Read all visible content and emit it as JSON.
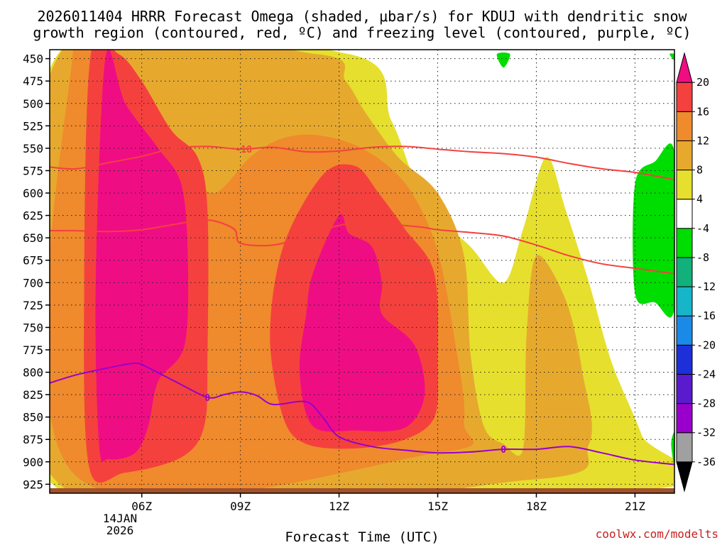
{
  "chart_data": {
    "type": "time-height",
    "title_line1": "2026011404 HRRR Forecast Omega (shaded, μbar/s) for KDUJ with dendritic snow",
    "title_line2": "growth region (contoured, red, ºC) and freezing level (contoured, purple, ºC)",
    "xlabel": "Forecast Time (UTC)",
    "credit": "coolwx.com/modelts",
    "xlim": [
      3.2,
      22.2
    ],
    "ylim": [
      440,
      935
    ],
    "x_ticks": [
      {
        "value": 6,
        "label": "06Z"
      },
      {
        "value": 9,
        "label": "09Z"
      },
      {
        "value": 12,
        "label": "12Z"
      },
      {
        "value": 15,
        "label": "15Z"
      },
      {
        "value": 18,
        "label": "18Z"
      },
      {
        "value": 21,
        "label": "21Z"
      }
    ],
    "date_label": {
      "value": 6,
      "line1": "14JAN",
      "line2": "2026"
    },
    "y_ticks": [
      450,
      475,
      500,
      525,
      550,
      575,
      600,
      625,
      650,
      675,
      700,
      725,
      750,
      775,
      800,
      825,
      850,
      875,
      900,
      925
    ],
    "colorbar": {
      "levels": [
        -36,
        -32,
        -28,
        -24,
        -20,
        -16,
        -12,
        -8,
        -4,
        4,
        8,
        12,
        16,
        20
      ],
      "bins": [
        {
          "color": "#000000"
        },
        {
          "color": "#a0a0a0"
        },
        {
          "color": "#9900cc"
        },
        {
          "color": "#5a1acd"
        },
        {
          "color": "#1c2fd9"
        },
        {
          "color": "#1a8ae8"
        },
        {
          "color": "#16b5c8"
        },
        {
          "color": "#12b07a"
        },
        {
          "color": "#00dd00"
        },
        {
          "color": "#ffffff"
        },
        {
          "color": "#e6df2e"
        },
        {
          "color": "#e6a92e"
        },
        {
          "color": "#ef8a2d"
        },
        {
          "color": "#f4413e"
        },
        {
          "color": "#ef0d84"
        }
      ]
    },
    "omega_shading": [
      {
        "level": "4 to 8",
        "color": "#e6df2e",
        "polygon": [
          [
            3.45,
            445
          ],
          [
            12.3,
            445
          ],
          [
            13.6,
            520
          ],
          [
            14.6,
            610
          ],
          [
            16.0,
            660
          ],
          [
            17.0,
            700
          ],
          [
            17.6,
            640
          ],
          [
            18.3,
            560
          ],
          [
            18.9,
            620
          ],
          [
            19.6,
            700
          ],
          [
            20.3,
            790
          ],
          [
            21.2,
            870
          ],
          [
            21.6,
            930
          ],
          [
            3.45,
            930
          ]
        ]
      },
      {
        "level": "8 to 12",
        "color": "#e6a92e",
        "polygon": [
          [
            3.5,
            445
          ],
          [
            11.3,
            445
          ],
          [
            12.2,
            475
          ],
          [
            12.8,
            510
          ],
          [
            13.8,
            560
          ],
          [
            15.0,
            600
          ],
          [
            15.8,
            670
          ],
          [
            16.0,
            780
          ],
          [
            16.4,
            860
          ],
          [
            17.0,
            880
          ],
          [
            17.6,
            885
          ],
          [
            17.7,
            760
          ],
          [
            18.0,
            670
          ],
          [
            18.9,
            720
          ],
          [
            19.4,
            800
          ],
          [
            19.6,
            880
          ],
          [
            17.8,
            920
          ],
          [
            3.5,
            925
          ]
        ]
      },
      {
        "level": "12 to 16",
        "color": "#ef8a2d",
        "polygon": [
          [
            3.9,
            445
          ],
          [
            5.0,
            445
          ],
          [
            6.0,
            490
          ],
          [
            6.8,
            540
          ],
          [
            7.3,
            570
          ],
          [
            8.2,
            600
          ],
          [
            9.3,
            560
          ],
          [
            10.2,
            540
          ],
          [
            11.2,
            535
          ],
          [
            12.4,
            545
          ],
          [
            13.5,
            570
          ],
          [
            14.3,
            605
          ],
          [
            15.0,
            665
          ],
          [
            15.5,
            760
          ],
          [
            15.8,
            855
          ],
          [
            15.0,
            890
          ],
          [
            3.9,
            912
          ]
        ]
      },
      {
        "level": "16 to 20",
        "color": "#f4413e",
        "polygon": [
          [
            4.45,
            445
          ],
          [
            5.3,
            445
          ],
          [
            6.0,
            475
          ],
          [
            6.9,
            530
          ],
          [
            7.7,
            560
          ],
          [
            8.0,
            620
          ],
          [
            8.0,
            780
          ],
          [
            7.9,
            860
          ],
          [
            7.2,
            895
          ],
          [
            5.5,
            912
          ],
          [
            4.4,
            906
          ],
          [
            4.25,
            700
          ]
        ]
      },
      {
        "level": "16 to 20",
        "color": "#f4413e",
        "polygon": [
          [
            11.5,
            580
          ],
          [
            12.5,
            570
          ],
          [
            13.2,
            600
          ],
          [
            14.0,
            640
          ],
          [
            14.9,
            690
          ],
          [
            15.0,
            790
          ],
          [
            14.9,
            850
          ],
          [
            14.0,
            875
          ],
          [
            12.5,
            885
          ],
          [
            11.0,
            880
          ],
          [
            10.3,
            850
          ],
          [
            9.9,
            760
          ],
          [
            10.3,
            660
          ]
        ]
      },
      {
        "level": "> 20",
        "color": "#ef0d84",
        "polygon": [
          [
            4.9,
            448
          ],
          [
            5.5,
            500
          ],
          [
            6.5,
            550
          ],
          [
            7.2,
            590
          ],
          [
            7.4,
            670
          ],
          [
            7.3,
            770
          ],
          [
            6.5,
            810
          ],
          [
            6.2,
            860
          ],
          [
            5.8,
            890
          ],
          [
            5.0,
            897
          ],
          [
            4.7,
            880
          ],
          [
            4.6,
            700
          ]
        ]
      },
      {
        "level": "> 20",
        "color": "#ef0d84",
        "polygon": [
          [
            12.0,
            625
          ],
          [
            12.3,
            645
          ],
          [
            13.0,
            660
          ],
          [
            13.3,
            700
          ],
          [
            13.3,
            735
          ],
          [
            14.3,
            770
          ],
          [
            14.6,
            825
          ],
          [
            14.0,
            862
          ],
          [
            12.5,
            865
          ],
          [
            11.2,
            860
          ],
          [
            10.8,
            800
          ],
          [
            11.0,
            735
          ],
          [
            11.2,
            690
          ]
        ]
      },
      {
        "level": "-8 to -4",
        "color": "#00dd00",
        "polygon": [
          [
            21.0,
            590
          ],
          [
            21.6,
            565
          ],
          [
            22.2,
            555
          ],
          [
            22.2,
            728
          ],
          [
            21.6,
            722
          ],
          [
            21.0,
            712
          ]
        ]
      },
      {
        "level": "-8 to -4",
        "color": "#00dd00",
        "polygon": [
          [
            16.8,
            445
          ],
          [
            17.2,
            445
          ],
          [
            17.0,
            460
          ]
        ]
      },
      {
        "level": "-8 to -4",
        "color": "#00dd00",
        "polygon": [
          [
            22.05,
            445
          ],
          [
            22.2,
            445
          ],
          [
            22.2,
            452
          ]
        ]
      },
      {
        "level": "-8 to -4",
        "color": "#00dd00",
        "polygon": [
          [
            22.1,
            880
          ],
          [
            22.2,
            868
          ],
          [
            22.2,
            905
          ]
        ]
      }
    ],
    "dgz_contours": [
      {
        "label": "-18",
        "color": "#f4413e",
        "label_x": 9.1,
        "points": [
          [
            3.2,
            571
          ],
          [
            4.0,
            573
          ],
          [
            5.0,
            566
          ],
          [
            6.0,
            559
          ],
          [
            7.0,
            550
          ],
          [
            8.0,
            548
          ],
          [
            9.0,
            551
          ],
          [
            10.0,
            549
          ],
          [
            11.0,
            554
          ],
          [
            12.0,
            553
          ],
          [
            13.0,
            549
          ],
          [
            14.0,
            548
          ],
          [
            15.0,
            551
          ],
          [
            16.0,
            554
          ],
          [
            17.0,
            556
          ],
          [
            18.0,
            560
          ],
          [
            19.0,
            567
          ],
          [
            20.0,
            573
          ],
          [
            21.0,
            577
          ],
          [
            22.2,
            585
          ]
        ]
      },
      {
        "label": "",
        "color": "#f4413e",
        "points": [
          [
            3.2,
            642
          ],
          [
            4.0,
            642
          ],
          [
            5.0,
            643
          ],
          [
            6.0,
            641
          ],
          [
            7.0,
            635
          ],
          [
            8.0,
            630
          ],
          [
            8.8,
            640
          ],
          [
            9.0,
            656
          ],
          [
            10.0,
            658
          ],
          [
            11.0,
            648
          ],
          [
            12.0,
            636
          ],
          [
            12.6,
            635
          ],
          [
            13.5,
            635
          ],
          [
            14.5,
            638
          ],
          [
            15.0,
            641
          ],
          [
            16.0,
            644
          ],
          [
            17.0,
            648
          ],
          [
            18.0,
            658
          ],
          [
            19.0,
            670
          ],
          [
            20.0,
            679
          ],
          [
            21.0,
            684
          ],
          [
            22.2,
            690
          ]
        ]
      }
    ],
    "freezing_contour": {
      "label": "0",
      "color": "#9900cc",
      "label_x": 8.0,
      "label_x2": 17.0,
      "points": [
        [
          3.2,
          812
        ],
        [
          4.0,
          803
        ],
        [
          5.0,
          795
        ],
        [
          5.8,
          790
        ],
        [
          6.2,
          795
        ],
        [
          7.0,
          810
        ],
        [
          8.0,
          828
        ],
        [
          8.5,
          825
        ],
        [
          9.0,
          822
        ],
        [
          9.5,
          826
        ],
        [
          10.0,
          836
        ],
        [
          11.0,
          833
        ],
        [
          11.5,
          850
        ],
        [
          12.0,
          872
        ],
        [
          13.0,
          883
        ],
        [
          14.0,
          887
        ],
        [
          15.0,
          890
        ],
        [
          16.0,
          889
        ],
        [
          17.0,
          886
        ],
        [
          18.0,
          886
        ],
        [
          19.0,
          883
        ],
        [
          20.0,
          890
        ],
        [
          21.0,
          898
        ],
        [
          22.2,
          903
        ]
      ]
    }
  }
}
